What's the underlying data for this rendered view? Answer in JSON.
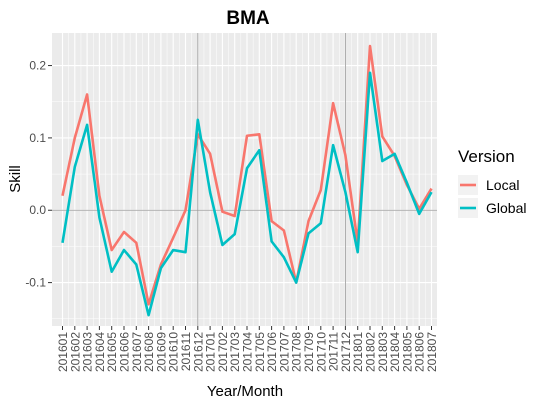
{
  "chart_data": {
    "type": "line",
    "title": "BMA",
    "xlabel": "Year/Month",
    "ylabel": "Skill",
    "categories": [
      "201601",
      "201602",
      "201603",
      "201604",
      "201605",
      "201606",
      "201607",
      "201608",
      "201609",
      "201610",
      "201611",
      "201612",
      "201701",
      "201702",
      "201703",
      "201704",
      "201705",
      "201706",
      "201707",
      "201708",
      "201709",
      "201710",
      "201711",
      "201712",
      "201801",
      "201802",
      "201803",
      "201804",
      "201805",
      "201806",
      "201807"
    ],
    "ylim": [
      -0.16,
      0.245
    ],
    "yticks": [
      -0.1,
      0.0,
      0.1,
      0.2
    ],
    "ytick_labels": [
      "-0.1",
      "0.0",
      "0.1",
      "0.2"
    ],
    "reference_lines": {
      "y": 0.0,
      "x_categories": [
        "201612",
        "201712"
      ]
    },
    "grid": true,
    "legend": {
      "title": "Version",
      "position": "right"
    },
    "series": [
      {
        "name": "Local",
        "color": "#F8766D",
        "values": [
          0.02,
          0.1,
          0.16,
          0.02,
          -0.055,
          -0.03,
          -0.045,
          -0.13,
          -0.075,
          -0.038,
          0.0,
          0.105,
          0.078,
          -0.002,
          -0.008,
          0.103,
          0.105,
          -0.015,
          -0.028,
          -0.1,
          -0.015,
          0.028,
          0.148,
          0.076,
          -0.045,
          0.227,
          0.102,
          0.075,
          0.035,
          0.002,
          0.03
        ]
      },
      {
        "name": "Global",
        "color": "#00BFC4",
        "values": [
          -0.045,
          0.06,
          0.118,
          -0.01,
          -0.085,
          -0.055,
          -0.075,
          -0.145,
          -0.08,
          -0.055,
          -0.058,
          0.125,
          0.025,
          -0.048,
          -0.033,
          0.058,
          0.083,
          -0.043,
          -0.065,
          -0.1,
          -0.032,
          -0.018,
          0.09,
          0.025,
          -0.058,
          0.19,
          0.068,
          0.078,
          0.038,
          -0.005,
          0.025
        ]
      }
    ]
  }
}
